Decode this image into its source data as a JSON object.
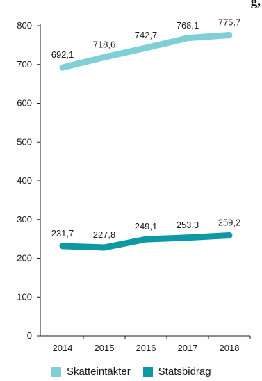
{
  "title_fragment": "g,",
  "chart_data": {
    "type": "line",
    "title": "",
    "xlabel": "",
    "ylabel": "",
    "categories": [
      "2014",
      "2015",
      "2016",
      "2017",
      "2018"
    ],
    "ylim": [
      0,
      800
    ],
    "yticks": [
      0,
      100,
      200,
      300,
      400,
      500,
      600,
      700,
      800
    ],
    "grid": false,
    "legend_position": "bottom",
    "series": [
      {
        "name": "Skatteintäkter",
        "color": "#7fcfd6",
        "values": [
          692.1,
          718.6,
          742.7,
          768.1,
          775.7
        ],
        "labels": [
          "692,1",
          "718,6",
          "742,7",
          "768,1",
          "775,7"
        ]
      },
      {
        "name": "Statsbidrag",
        "color": "#0d98a4",
        "values": [
          231.7,
          227.8,
          249.1,
          253.3,
          259.2
        ],
        "labels": [
          "231,7",
          "227,8",
          "249,1",
          "253,3",
          "259,2"
        ]
      }
    ]
  }
}
